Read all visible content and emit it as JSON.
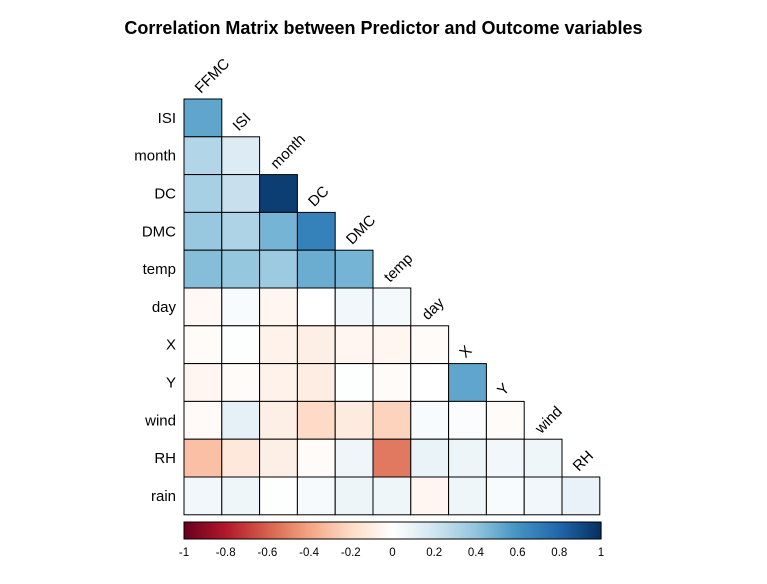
{
  "chart_data": {
    "type": "heatmap",
    "title": "Correlation Matrix between Predictor and Outcome variables",
    "layout": "lower-triangle",
    "row_labels": [
      "ISI",
      "month",
      "DC",
      "DMC",
      "temp",
      "day",
      "X",
      "Y",
      "wind",
      "RH",
      "rain"
    ],
    "col_labels": [
      "FFMC",
      "ISI",
      "month",
      "DC",
      "DMC",
      "temp",
      "day",
      "X",
      "Y",
      "wind",
      "RH"
    ],
    "values": [
      [
        0.53
      ],
      [
        0.3,
        0.15
      ],
      [
        0.33,
        0.23,
        0.95
      ],
      [
        0.38,
        0.31,
        0.47,
        0.68
      ],
      [
        0.43,
        0.39,
        0.37,
        0.5,
        0.47
      ],
      [
        -0.04,
        0.03,
        -0.05,
        0.0,
        0.06,
        0.05
      ],
      [
        -0.02,
        0.01,
        -0.07,
        -0.09,
        -0.05,
        -0.05,
        -0.02
      ],
      [
        -0.05,
        -0.02,
        -0.07,
        -0.1,
        0.01,
        -0.02,
        0.0,
        0.53
      ],
      [
        -0.03,
        0.11,
        -0.09,
        -0.2,
        -0.11,
        -0.23,
        0.03,
        0.02,
        -0.02
      ],
      [
        -0.3,
        -0.13,
        -0.09,
        -0.02,
        0.07,
        -0.53,
        0.09,
        0.08,
        0.06,
        0.07
      ],
      [
        0.06,
        0.07,
        0.01,
        0.04,
        0.08,
        0.07,
        -0.05,
        0.07,
        0.03,
        0.06,
        0.1
      ]
    ],
    "colorbar": {
      "range": [
        -1,
        1
      ],
      "ticks": [
        "-1",
        "-0.8",
        "-0.6",
        "-0.4",
        "-0.2",
        "0",
        "0.2",
        "0.4",
        "0.6",
        "0.8",
        "1"
      ],
      "palette": [
        "#67001F",
        "#B2182B",
        "#D6604D",
        "#F4A582",
        "#FDDBC7",
        "#FFFFFF",
        "#D1E5F0",
        "#92C5DE",
        "#4393C3",
        "#2166AC",
        "#053061"
      ]
    }
  }
}
